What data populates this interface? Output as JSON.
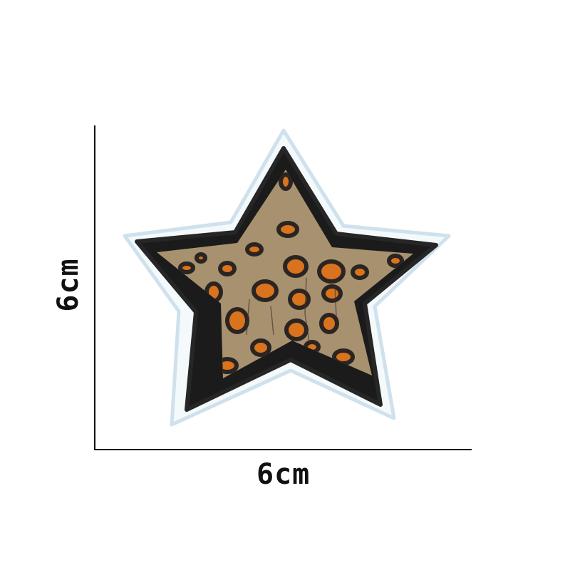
{
  "dimensions": {
    "height_label": "6cm",
    "width_label": "6cm"
  },
  "colors": {
    "background": "#ffffff",
    "axis": "#111111",
    "backing": "#f4f9fc",
    "backing_edge": "#cfe1ec",
    "border": "#1b1b1b",
    "fill": "#a8916f",
    "spot_orange": "#d9731e",
    "spot_outline": "#2a2522"
  },
  "image": {
    "subject": "leopard-print-star-patch-icon"
  }
}
